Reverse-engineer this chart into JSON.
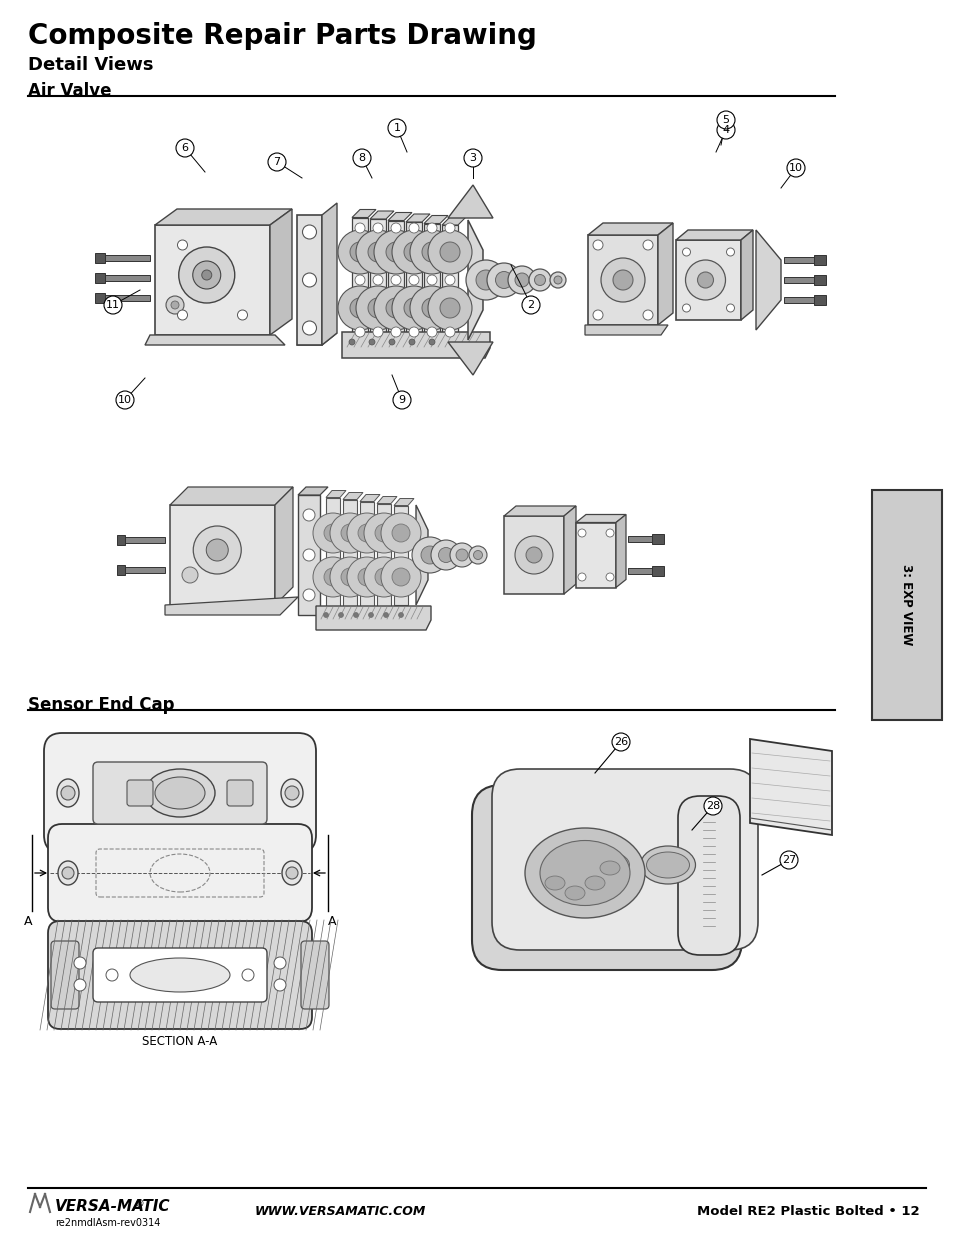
{
  "title": "Composite Repair Parts Drawing",
  "subtitle": "Detail Views",
  "section1_label": "Air Valve",
  "section2_label": "Sensor End Cap",
  "tab_text": "3: EXP VIEW",
  "footer_left1": "VERSA-MATIC",
  "footer_left1_reg": "®",
  "footer_left2": "re2nmdlAsm-rev0314",
  "footer_center": "WWW.VERSAMATIC.COM",
  "footer_right": "Model RE2 Plastic Bolted • 12",
  "bg_color": "#ffffff",
  "tab_bg": "#cccccc",
  "section_a_label": "SECTION A-A"
}
